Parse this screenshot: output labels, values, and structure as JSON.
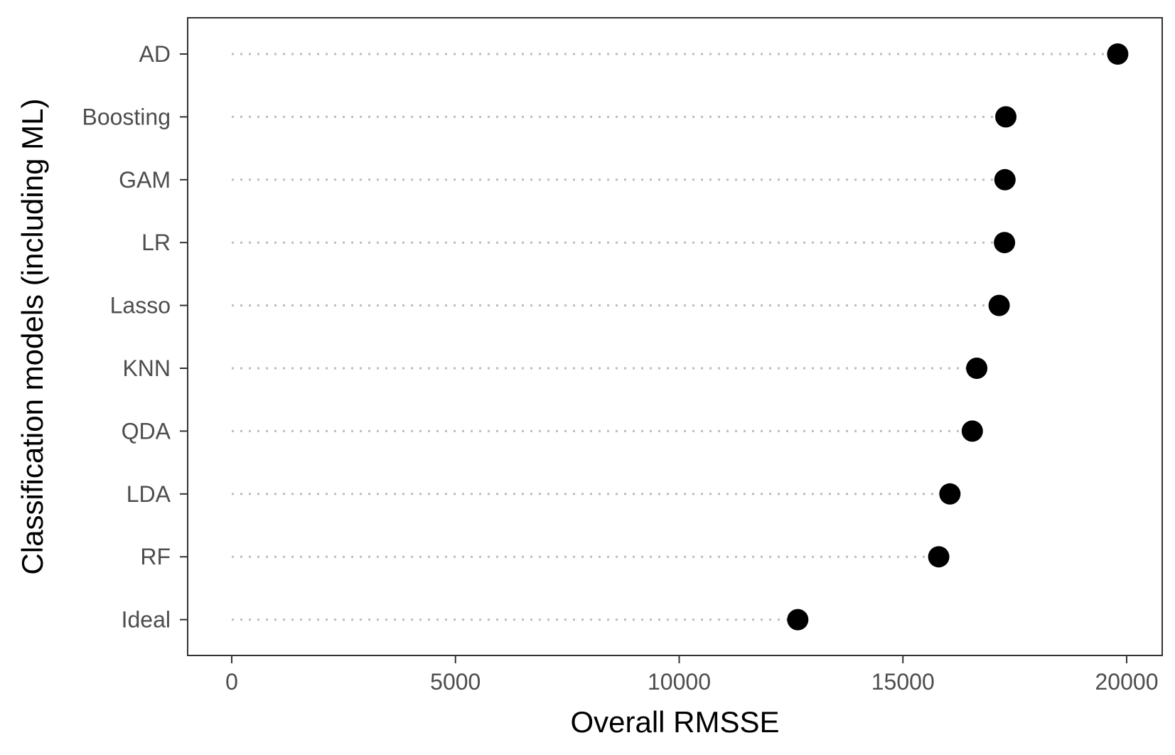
{
  "chart_data": {
    "type": "scatter",
    "subtype": "dot-plot",
    "title": "",
    "xlabel": "Overall RMSSE",
    "ylabel": "Classification models (including ML)",
    "categories": [
      "AD",
      "Boosting",
      "GAM",
      "LR",
      "Lasso",
      "KNN",
      "QDA",
      "LDA",
      "RF",
      "Ideal"
    ],
    "values": [
      19800,
      17300,
      17280,
      17270,
      17150,
      16650,
      16550,
      16050,
      15800,
      12650
    ],
    "xlim": [
      -1000,
      20700
    ],
    "xticks": [
      0,
      5000,
      10000,
      15000,
      20000
    ],
    "grid": false,
    "legend": "none",
    "colors": {
      "point": "#000000",
      "guide_line": "#bdbdbd",
      "panel_border": "#333333",
      "tick_text": "#4d4d4d"
    }
  }
}
